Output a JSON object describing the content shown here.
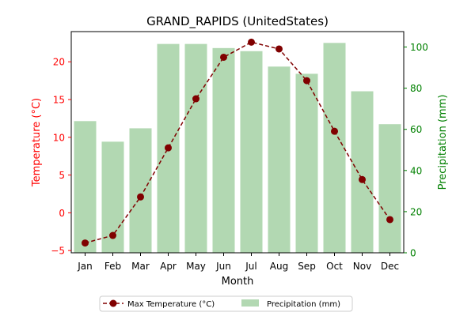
{
  "chart_data": {
    "type": "bar+line",
    "title": "GRAND_RAPIDS (UnitedStates)",
    "xlabel": "Month",
    "ylabel_left": "Temperature (°C)",
    "ylabel_right": "Precipitation (mm)",
    "categories": [
      "Jan",
      "Feb",
      "Mar",
      "Apr",
      "May",
      "Jun",
      "Jul",
      "Aug",
      "Sep",
      "Oct",
      "Nov",
      "Dec"
    ],
    "ylim_left": [
      -5.3,
      24.0
    ],
    "ylim_right": [
      0,
      107.5
    ],
    "yticks_left": [
      -5,
      0,
      5,
      10,
      15,
      20
    ],
    "yticks_right": [
      0,
      20,
      40,
      60,
      80,
      100
    ],
    "series": [
      {
        "name": "Max Temperature (°C)",
        "kind": "line",
        "axis": "left",
        "values": [
          -4.0,
          -3.0,
          2.1,
          8.6,
          15.1,
          20.6,
          22.6,
          21.7,
          17.5,
          10.8,
          4.4,
          -0.9
        ]
      },
      {
        "name": "Precipitation (mm)",
        "kind": "bar",
        "axis": "right",
        "values": [
          64,
          54,
          60.5,
          101.5,
          101.5,
          99.5,
          98,
          90.5,
          87,
          102,
          78.5,
          62.5
        ]
      }
    ],
    "colors": {
      "temperature": "#800000",
      "precipitation": "#b2d8b2",
      "left_axis": "#ff0000",
      "right_axis": "#008000",
      "frame": "#000000"
    },
    "legend_position": "bottom-center",
    "grid": false
  }
}
